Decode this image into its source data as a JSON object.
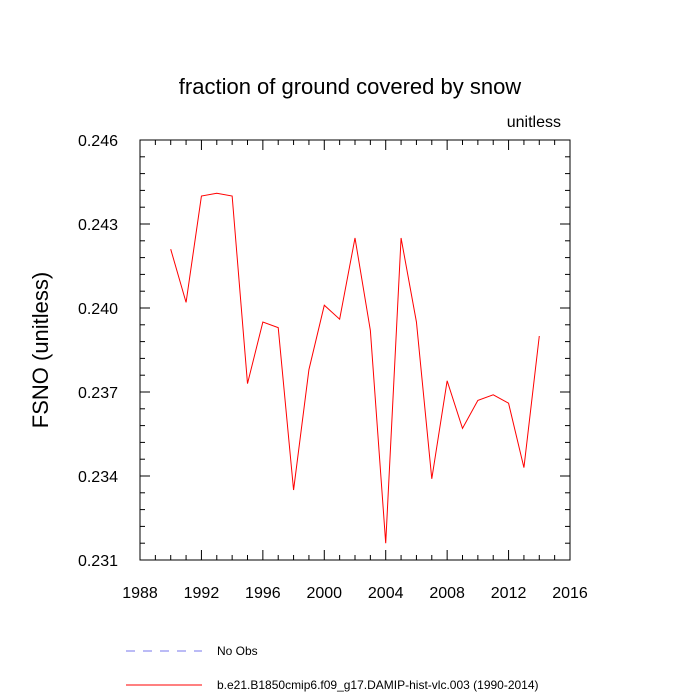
{
  "chart_data": {
    "type": "line",
    "title": "fraction of ground covered by snow",
    "units_label": "unitless",
    "ylabel": "FSNO  (unitless)",
    "xlabel": "",
    "xlim": [
      1988,
      2016
    ],
    "ylim": [
      0.231,
      0.246
    ],
    "x_ticks": [
      1988,
      1992,
      1996,
      2000,
      2004,
      2008,
      2012,
      2016
    ],
    "y_ticks": [
      0.231,
      0.234,
      0.237,
      0.24,
      0.243,
      0.246
    ],
    "y_tick_labels": [
      "0.231",
      "0.234",
      "0.237",
      "0.240",
      "0.243",
      "0.246"
    ],
    "grid": false,
    "legend_position": "bottom",
    "series": [
      {
        "name": "b.e21.B1850cmip6.f09_g17.DAMIP-hist-vlc.003 (1990-2014)",
        "color": "#ff0000",
        "style": "solid",
        "x": [
          1990,
          1991,
          1992,
          1993,
          1994,
          1995,
          1996,
          1997,
          1998,
          1999,
          2000,
          2001,
          2002,
          2003,
          2004,
          2005,
          2006,
          2007,
          2008,
          2009,
          2010,
          2011,
          2012,
          2013,
          2014
        ],
        "y": [
          0.2421,
          0.2402,
          0.244,
          0.2441,
          0.244,
          0.2373,
          0.2395,
          0.2393,
          0.2335,
          0.2378,
          0.2401,
          0.2396,
          0.2425,
          0.2392,
          0.2316,
          0.2425,
          0.2395,
          0.2339,
          0.2374,
          0.2357,
          0.2367,
          0.2369,
          0.2366,
          0.2343,
          0.239
        ]
      }
    ],
    "legend": [
      {
        "label": "No Obs",
        "color": "#7777ee",
        "style": "dashed"
      },
      {
        "label": "b.e21.B1850cmip6.f09_g17.DAMIP-hist-vlc.003 (1990-2014)",
        "color": "#ff0000",
        "style": "solid"
      }
    ]
  }
}
